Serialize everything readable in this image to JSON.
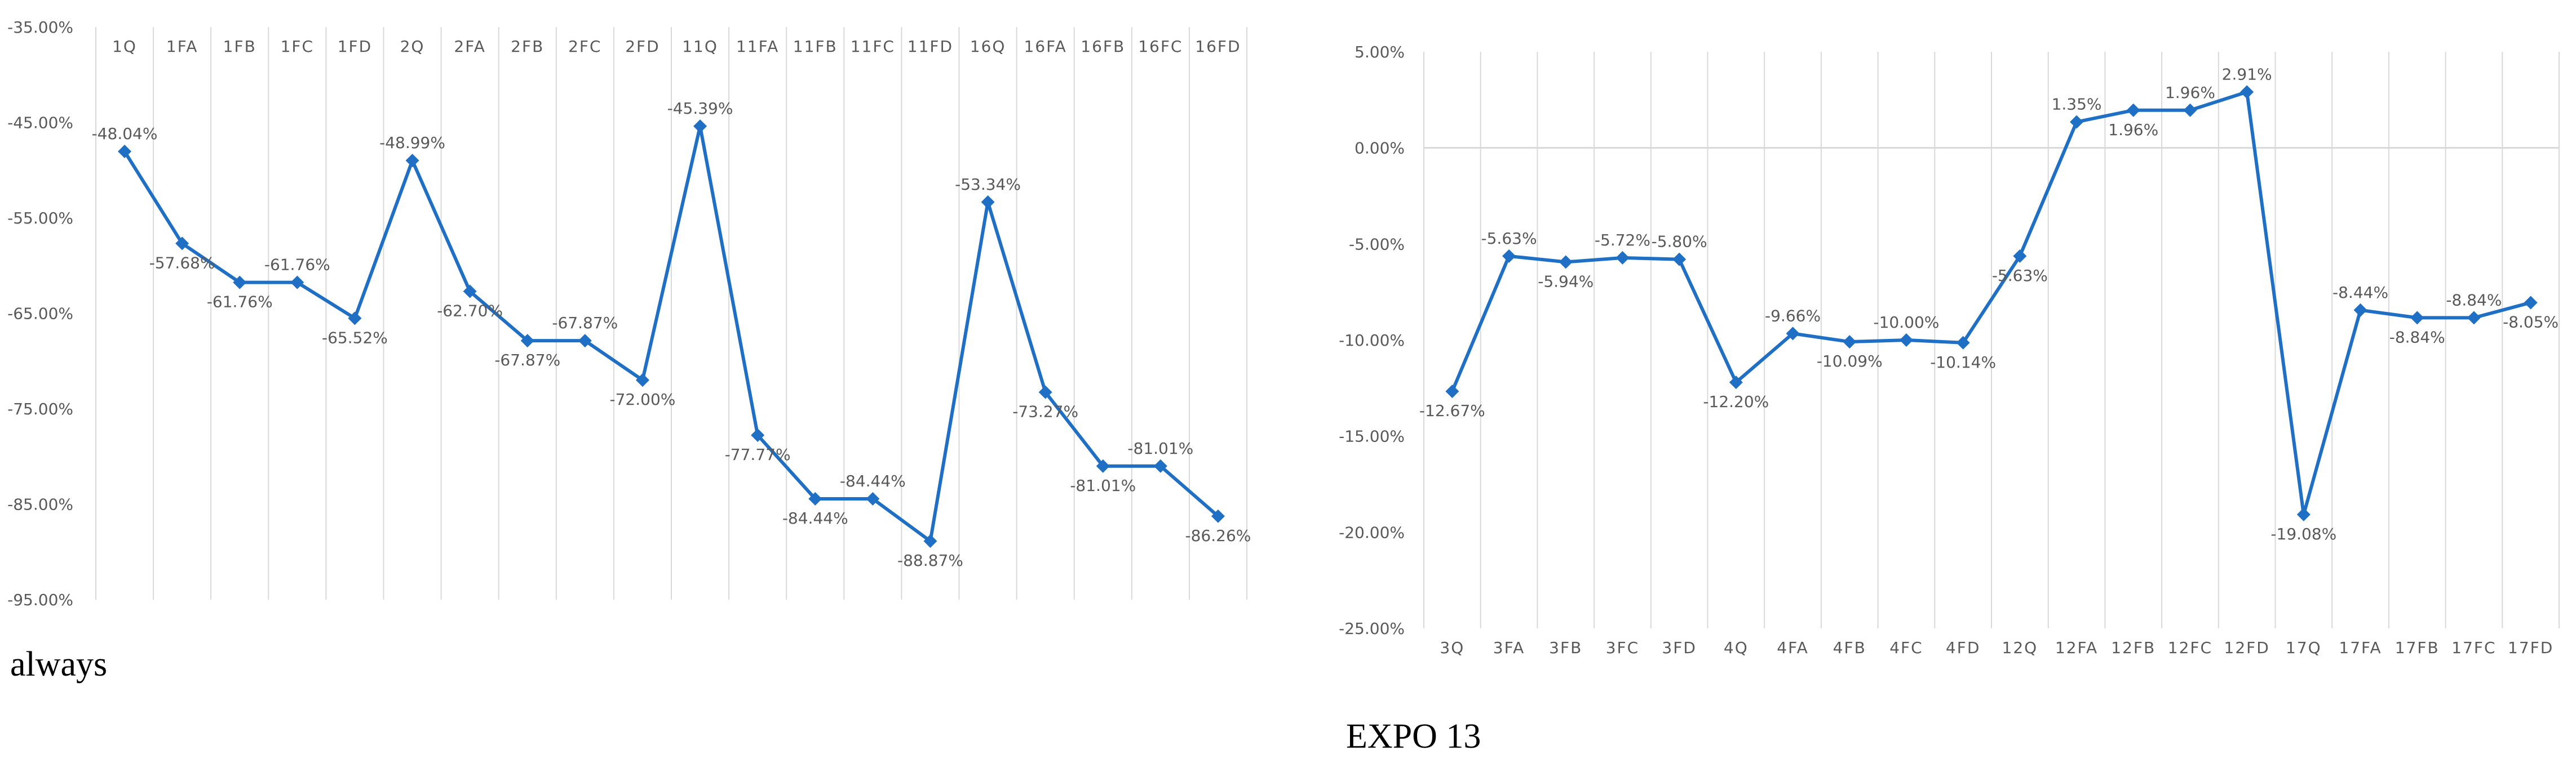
{
  "colors": {
    "series": "#1f6fc5",
    "grid": "#d9d9d9",
    "label_text": "#595959",
    "caption_text": "#000000"
  },
  "chart_data": [
    {
      "type": "line",
      "caption": "always",
      "categories": [
        "1Q",
        "1FA",
        "1FB",
        "1FC",
        "1FD",
        "2Q",
        "2FA",
        "2FB",
        "2FC",
        "2FD",
        "11Q",
        "11FA",
        "11FB",
        "11FC",
        "11FD",
        "16Q",
        "16FA",
        "16FB",
        "16FC",
        "16FD"
      ],
      "values": [
        -48.04,
        -57.68,
        -61.76,
        -61.76,
        -65.52,
        -48.99,
        -62.7,
        -67.87,
        -67.87,
        -72.0,
        -45.39,
        -77.77,
        -84.44,
        -84.44,
        -88.87,
        -53.34,
        -73.27,
        -81.01,
        -81.01,
        -86.26
      ],
      "data_labels": [
        "-48.04%",
        "-57.68%",
        "-61.76%",
        "-61.76%",
        "-65.52%",
        "-48.99%",
        "-62.70%",
        "-67.87%",
        "-67.87%",
        "-72.00%",
        "-45.39%",
        "-77.77%",
        "-84.44%",
        "-84.44%",
        "-88.87%",
        "-53.34%",
        "-73.27%",
        "-81.01%",
        "-81.01%",
        "-86.26%"
      ],
      "label_positions": [
        "above",
        "below",
        "below",
        "above",
        "below",
        "above",
        "below",
        "below",
        "above",
        "below",
        "above",
        "below",
        "below",
        "above",
        "below",
        "above",
        "below",
        "below",
        "above",
        "below"
      ],
      "y_ticks": [
        -35,
        -45,
        -55,
        -65,
        -75,
        -85,
        -95
      ],
      "y_tick_labels": [
        "-35.00%",
        "-45.00%",
        "-55.00%",
        "-65.00%",
        "-75.00%",
        "-85.00%",
        "-95.00%"
      ],
      "ylim": [
        -95,
        -35
      ],
      "y_reversed": false,
      "category_axis": "top",
      "grid": "vertical",
      "marker": "diamond"
    },
    {
      "type": "line",
      "caption": "EXPO 13",
      "categories": [
        "3Q",
        "3FA",
        "3FB",
        "3FC",
        "3FD",
        "4Q",
        "4FA",
        "4FB",
        "4FC",
        "4FD",
        "12Q",
        "12FA",
        "12FB",
        "12FC",
        "12FD",
        "17Q",
        "17FA",
        "17FB",
        "17FC",
        "17FD"
      ],
      "values": [
        -12.67,
        -5.63,
        -5.94,
        -5.72,
        -5.8,
        -12.2,
        -9.66,
        -10.09,
        -10.0,
        -10.14,
        -5.63,
        1.35,
        1.96,
        1.96,
        2.91,
        -19.08,
        -8.44,
        -8.84,
        -8.84,
        -8.05
      ],
      "data_labels": [
        "-12.67%",
        "-5.63%",
        "-5.94%",
        "-5.72%",
        "-5.80%",
        "-12.20%",
        "-9.66%",
        "-10.09%",
        "-10.00%",
        "-10.14%",
        "-5.63%",
        "1.35%",
        "1.96%",
        "1.96%",
        "2.91%",
        "-19.08%",
        "-8.44%",
        "-8.84%",
        "-8.84%",
        "-8.05%"
      ],
      "label_positions": [
        "below",
        "above",
        "below",
        "above",
        "above",
        "below",
        "above",
        "below",
        "above",
        "below",
        "below",
        "above",
        "below",
        "above",
        "above",
        "below",
        "above",
        "below",
        "above",
        "below"
      ],
      "y_ticks": [
        5,
        0,
        -5,
        -10,
        -15,
        -20,
        -25
      ],
      "y_tick_labels": [
        "5.00%",
        "0.00%",
        "-5.00%",
        "-10.00%",
        "-15.00%",
        "-20.00%",
        "-25.00%"
      ],
      "ylim": [
        -25,
        5
      ],
      "category_axis": "bottom",
      "grid": "vertical",
      "zero_line": true,
      "marker": "diamond"
    }
  ]
}
